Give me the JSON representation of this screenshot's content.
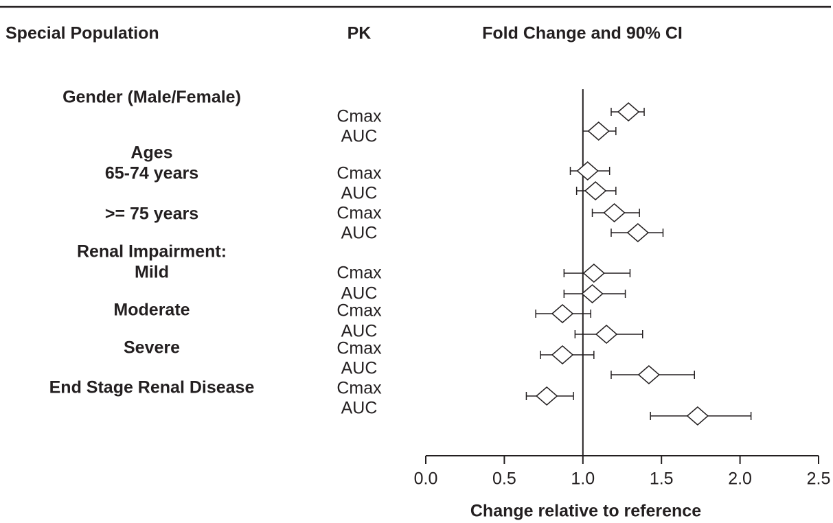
{
  "chart_data": {
    "type": "forest",
    "columns": [
      "Special Population",
      "PK",
      "Fold Change and 90% CI"
    ],
    "x_label": "Change relative to reference",
    "xlim": [
      0,
      2.5
    ],
    "xticks": [
      {
        "value": 0,
        "label": "0.0"
      },
      0.5,
      {
        "value": 1,
        "label": "1.0"
      },
      1.5,
      {
        "value": 2,
        "label": "2.0"
      },
      2.5
    ],
    "reference_line": 1,
    "groups": [
      {
        "label": "Gender (Male/Female)",
        "rows": [
          {
            "pk": "Cmax",
            "estimate": 1.29,
            "lower": 1.18,
            "upper": 1.39
          },
          {
            "pk": "AUC",
            "estimate": 1.1,
            "lower": 1.0,
            "upper": 1.21
          }
        ]
      },
      {
        "label": "Ages",
        "subgroups": [
          {
            "label": "65-74 years",
            "rows": [
              {
                "pk": "Cmax",
                "estimate": 1.03,
                "lower": 0.92,
                "upper": 1.17
              },
              {
                "pk": "AUC",
                "estimate": 1.08,
                "lower": 0.96,
                "upper": 1.21
              }
            ]
          },
          {
            "label": ">= 75 years",
            "rows": [
              {
                "pk": "Cmax",
                "estimate": 1.2,
                "lower": 1.06,
                "upper": 1.36
              },
              {
                "pk": "AUC",
                "estimate": 1.35,
                "lower": 1.18,
                "upper": 1.51
              }
            ]
          }
        ]
      },
      {
        "label": "Renal Impairment:",
        "subgroups": [
          {
            "label": "Mild",
            "rows": [
              {
                "pk": "Cmax",
                "estimate": 1.07,
                "lower": 0.88,
                "upper": 1.3
              },
              {
                "pk": "AUC",
                "estimate": 1.06,
                "lower": 0.88,
                "upper": 1.27
              }
            ]
          },
          {
            "label": "Moderate",
            "rows": [
              {
                "pk": "Cmax",
                "estimate": 0.87,
                "lower": 0.7,
                "upper": 1.05
              },
              {
                "pk": "AUC",
                "estimate": 1.15,
                "lower": 0.95,
                "upper": 1.38
              }
            ]
          },
          {
            "label": "Severe",
            "rows": [
              {
                "pk": "Cmax",
                "estimate": 0.87,
                "lower": 0.73,
                "upper": 1.07
              },
              {
                "pk": "AUC",
                "estimate": 1.42,
                "lower": 1.18,
                "upper": 1.71
              }
            ]
          }
        ]
      },
      {
        "label": "End Stage Renal Disease",
        "rows": [
          {
            "pk": "Cmax",
            "estimate": 0.77,
            "lower": 0.64,
            "upper": 0.94
          },
          {
            "pk": "AUC",
            "estimate": 1.73,
            "lower": 1.43,
            "upper": 2.07
          }
        ]
      }
    ]
  }
}
